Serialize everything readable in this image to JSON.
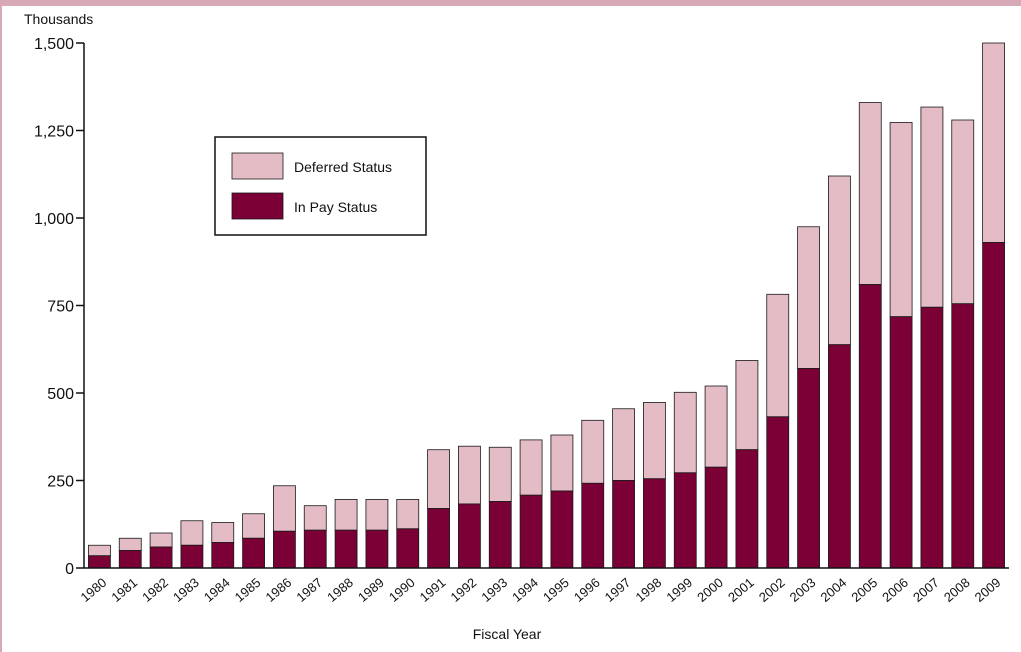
{
  "colors": {
    "frame_border": "#d7a8b5",
    "in_pay": "#7a0035",
    "deferred": "#e3bcc6",
    "bar_outline": "#1a1a1a",
    "axis": "#111111"
  },
  "chart_data": {
    "type": "bar",
    "stacked": true,
    "unit_label": "Thousands",
    "xlabel": "Fiscal Year",
    "ylabel": "",
    "ylim": [
      0,
      1500
    ],
    "yticks": [
      0,
      250,
      500,
      750,
      1000,
      1250,
      1500
    ],
    "ytick_labels": [
      "0",
      "250",
      "500",
      "750",
      "1,000",
      "1,250",
      "1,500"
    ],
    "grid": false,
    "legend_position": "upper-left",
    "categories": [
      "1980",
      "1981",
      "1982",
      "1983",
      "1984",
      "1985",
      "1986",
      "1987",
      "1988",
      "1989",
      "1990",
      "1991",
      "1992",
      "1993",
      "1994",
      "1995",
      "1996",
      "1997",
      "1998",
      "1999",
      "2000",
      "2001",
      "2002",
      "2003",
      "2004",
      "2005",
      "2006",
      "2007",
      "2008",
      "2009"
    ],
    "series": [
      {
        "name": "In Pay Status",
        "color": "#7a0035",
        "values": [
          35,
          50,
          60,
          65,
          73,
          85,
          105,
          108,
          108,
          108,
          112,
          170,
          183,
          190,
          208,
          220,
          242,
          250,
          255,
          272,
          288,
          338,
          432,
          570,
          638,
          810,
          718,
          745,
          755,
          930
        ]
      },
      {
        "name": "Deferred Status",
        "color": "#e3bcc6",
        "values": [
          30,
          35,
          40,
          70,
          57,
          70,
          130,
          70,
          88,
          88,
          84,
          168,
          165,
          155,
          158,
          160,
          180,
          205,
          218,
          230,
          232,
          255,
          350,
          405,
          482,
          520,
          555,
          572,
          525,
          570
        ]
      }
    ]
  }
}
